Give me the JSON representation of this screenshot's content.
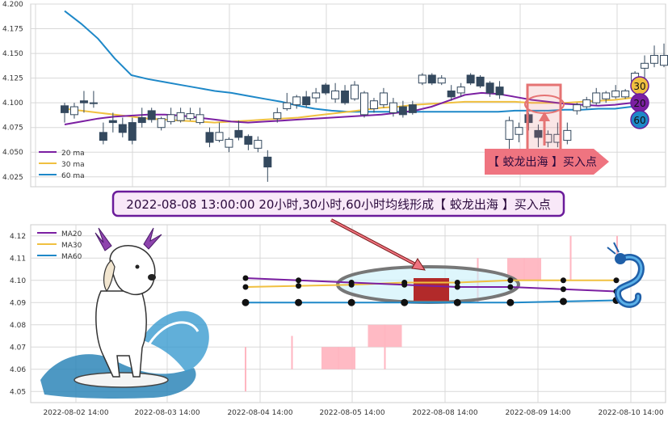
{
  "colors": {
    "ma20": "#7b1fa2",
    "ma30": "#f0c040",
    "ma60": "#1e88c8",
    "up": "#ffffff",
    "down": "#34495e",
    "grid": "#d8d8d8",
    "highlight": "#e57373",
    "banner_bg": "#f8e8f8",
    "banner_border": "#6a1b9a"
  },
  "top_chart": {
    "y_ticks": [
      "4.200",
      "4.175",
      "4.150",
      "4.125",
      "4.100",
      "4.075",
      "4.050",
      "4.025"
    ],
    "legend": [
      {
        "key": "ma20",
        "label": "20 ma"
      },
      {
        "key": "ma30",
        "label": "30 ma"
      },
      {
        "key": "ma60",
        "label": "60 ma"
      }
    ],
    "badges": [
      "30",
      "20",
      "60"
    ],
    "arrow_label": "【 蛟龙出海 】买入点"
  },
  "banner": "2022-08-08 13:00:00 20小时,30小时,60小时均线形成【 蛟龙出海 】买入点",
  "bottom_chart": {
    "y_ticks": [
      "4.12",
      "4.11",
      "4.10",
      "4.09",
      "4.08",
      "4.07",
      "4.06",
      "4.05"
    ],
    "x_ticks": [
      "2022-08-02 14:00",
      "2022-08-03 14:00",
      "2022-08-04 14:00",
      "2022-08-05 14:00",
      "2022-08-08 14:00",
      "2022-08-09 14:00",
      "2022-08-10 14:00"
    ],
    "legend": [
      {
        "key": "ma20",
        "label": "MA20"
      },
      {
        "key": "ma30",
        "label": "MA30"
      },
      {
        "key": "ma60",
        "label": "MA60"
      }
    ]
  },
  "chart_data": [
    {
      "type": "candlestick",
      "ylim": [
        4.015,
        4.2
      ],
      "candles": [
        {
          "o": 4.097,
          "c": 4.09,
          "h": 4.1,
          "l": 4.08
        },
        {
          "o": 4.088,
          "c": 4.096,
          "h": 4.1,
          "l": 4.084
        },
        {
          "o": 4.102,
          "c": 4.1,
          "h": 4.112,
          "l": 4.09
        },
        {
          "o": 4.1,
          "c": 4.1,
          "h": 4.112,
          "l": 4.095
        },
        {
          "o": 4.07,
          "c": 4.062,
          "h": 4.08,
          "l": 4.058
        },
        {
          "o": 4.082,
          "c": 4.08,
          "h": 4.09,
          "l": 4.07
        },
        {
          "o": 4.078,
          "c": 4.07,
          "h": 4.085,
          "l": 4.065
        },
        {
          "o": 4.08,
          "c": 4.062,
          "h": 4.085,
          "l": 4.058
        },
        {
          "o": 4.085,
          "c": 4.08,
          "h": 4.095,
          "l": 4.075
        },
        {
          "o": 4.092,
          "c": 4.083,
          "h": 4.095,
          "l": 4.08
        },
        {
          "o": 4.075,
          "c": 4.084,
          "h": 4.086,
          "l": 4.072
        },
        {
          "o": 4.081,
          "c": 4.088,
          "h": 4.095,
          "l": 4.078
        },
        {
          "o": 4.082,
          "c": 4.09,
          "h": 4.095,
          "l": 4.08
        },
        {
          "o": 4.084,
          "c": 4.089,
          "h": 4.095,
          "l": 4.082
        },
        {
          "o": 4.08,
          "c": 4.088,
          "h": 4.095,
          "l": 4.078
        },
        {
          "o": 4.07,
          "c": 4.06,
          "h": 4.075,
          "l": 4.055
        },
        {
          "o": 4.062,
          "c": 4.07,
          "h": 4.08,
          "l": 4.06
        },
        {
          "o": 4.055,
          "c": 4.063,
          "h": 4.065,
          "l": 4.05
        },
        {
          "o": 4.072,
          "c": 4.065,
          "h": 4.082,
          "l": 4.062
        },
        {
          "o": 4.066,
          "c": 4.058,
          "h": 4.068,
          "l": 4.052
        },
        {
          "o": 4.054,
          "c": 4.062,
          "h": 4.066,
          "l": 4.05
        },
        {
          "o": 4.045,
          "c": 4.035,
          "h": 4.052,
          "l": 4.02
        },
        {
          "o": 4.084,
          "c": 4.09,
          "h": 4.095,
          "l": 4.08
        },
        {
          "o": 4.094,
          "c": 4.1,
          "h": 4.11,
          "l": 4.092
        },
        {
          "o": 4.098,
          "c": 4.106,
          "h": 4.108,
          "l": 4.094
        },
        {
          "o": 4.106,
          "c": 4.098,
          "h": 4.112,
          "l": 4.095
        },
        {
          "o": 4.105,
          "c": 4.11,
          "h": 4.115,
          "l": 4.1
        },
        {
          "o": 4.118,
          "c": 4.11,
          "h": 4.12,
          "l": 4.108
        },
        {
          "o": 4.104,
          "c": 4.112,
          "h": 4.12,
          "l": 4.1
        },
        {
          "o": 4.112,
          "c": 4.1,
          "h": 4.118,
          "l": 4.098
        },
        {
          "o": 4.104,
          "c": 4.118,
          "h": 4.122,
          "l": 4.102
        },
        {
          "o": 4.088,
          "c": 4.11,
          "h": 4.112,
          "l": 4.085
        },
        {
          "o": 4.094,
          "c": 4.102,
          "h": 4.105,
          "l": 4.09
        },
        {
          "o": 4.098,
          "c": 4.11,
          "h": 4.115,
          "l": 4.095
        },
        {
          "o": 4.09,
          "c": 4.1,
          "h": 4.105,
          "l": 4.086
        },
        {
          "o": 4.096,
          "c": 4.088,
          "h": 4.102,
          "l": 4.085
        },
        {
          "o": 4.098,
          "c": 4.09,
          "h": 4.102,
          "l": 4.088
        },
        {
          "o": 4.12,
          "c": 4.128,
          "h": 4.13,
          "l": 4.118
        },
        {
          "o": 4.128,
          "c": 4.12,
          "h": 4.13,
          "l": 4.118
        },
        {
          "o": 4.12,
          "c": 4.125,
          "h": 4.128,
          "l": 4.118
        },
        {
          "o": 4.112,
          "c": 4.106,
          "h": 4.118,
          "l": 4.102
        },
        {
          "o": 4.11,
          "c": 4.116,
          "h": 4.12,
          "l": 4.106
        },
        {
          "o": 4.128,
          "c": 4.12,
          "h": 4.13,
          "l": 4.118
        },
        {
          "o": 4.126,
          "c": 4.117,
          "h": 4.128,
          "l": 4.115
        },
        {
          "o": 4.12,
          "c": 4.11,
          "h": 4.122,
          "l": 4.106
        },
        {
          "o": 4.116,
          "c": 4.108,
          "h": 4.122,
          "l": 4.104
        },
        {
          "o": 4.063,
          "c": 4.082,
          "h": 4.086,
          "l": 4.05
        },
        {
          "o": 4.068,
          "c": 4.075,
          "h": 4.08,
          "l": 4.06
        },
        {
          "o": 4.088,
          "c": 4.08,
          "h": 4.09,
          "l": 4.072
        },
        {
          "o": 4.072,
          "c": 4.065,
          "h": 4.078,
          "l": 4.055
        },
        {
          "o": 4.06,
          "c": 4.068,
          "h": 4.072,
          "l": 4.055
        },
        {
          "o": 4.06,
          "c": 4.068,
          "h": 4.08,
          "l": 4.055
        },
        {
          "o": 4.062,
          "c": 4.072,
          "h": 4.08,
          "l": 4.058
        },
        {
          "o": 4.092,
          "c": 4.098,
          "h": 4.1,
          "l": 4.088
        },
        {
          "o": 4.096,
          "c": 4.103,
          "h": 4.106,
          "l": 4.094
        },
        {
          "o": 4.1,
          "c": 4.11,
          "h": 4.115,
          "l": 4.098
        },
        {
          "o": 4.104,
          "c": 4.11,
          "h": 4.112,
          "l": 4.1
        },
        {
          "o": 4.106,
          "c": 4.112,
          "h": 4.118,
          "l": 4.104
        },
        {
          "o": 4.106,
          "c": 4.112,
          "h": 4.114,
          "l": 4.104
        },
        {
          "o": 4.122,
          "c": 4.13,
          "h": 4.132,
          "l": 4.12
        },
        {
          "o": 4.135,
          "c": 4.14,
          "h": 4.148,
          "l": 4.125
        },
        {
          "o": 4.14,
          "c": 4.148,
          "h": 4.158,
          "l": 4.136
        },
        {
          "o": 4.138,
          "c": 4.148,
          "h": 4.16,
          "l": 4.136
        }
      ],
      "ma20": [
        4.078,
        4.081,
        4.084,
        4.086,
        4.087,
        4.088,
        4.088,
        4.087,
        4.085,
        4.083,
        4.081,
        4.08,
        4.081,
        4.082,
        4.083,
        4.084,
        4.085,
        4.086,
        4.087,
        4.088,
        4.09,
        4.092,
        4.096,
        4.102,
        4.108,
        4.11,
        4.109,
        4.106,
        4.103,
        4.101,
        4.099,
        4.098,
        4.097,
        4.098,
        4.1
      ],
      "ma30": [
        4.094,
        4.092,
        4.09,
        4.088,
        4.086,
        4.084,
        4.083,
        4.082,
        4.081,
        4.08,
        4.081,
        4.082,
        4.083,
        4.084,
        4.085,
        4.087,
        4.089,
        4.091,
        4.093,
        4.095,
        4.096,
        4.098,
        4.099,
        4.1,
        4.101,
        4.101,
        4.101,
        4.101,
        4.1,
        4.1,
        4.1,
        4.101,
        4.102,
        4.103,
        4.105
      ],
      "ma60": [
        4.193,
        4.18,
        4.165,
        4.145,
        4.128,
        4.124,
        4.121,
        4.118,
        4.115,
        4.112,
        4.11,
        4.107,
        4.104,
        4.101,
        4.097,
        4.094,
        4.092,
        4.091,
        4.091,
        4.091,
        4.091,
        4.091,
        4.091,
        4.091,
        4.091,
        4.091,
        4.091,
        4.092,
        4.092,
        4.092,
        4.093,
        4.093,
        4.094,
        4.094,
        4.096
      ]
    },
    {
      "type": "candlestick",
      "ylim": [
        4.045,
        4.125
      ],
      "candles": [
        {
          "o": 4.07,
          "c": 4.07,
          "h": 4.07,
          "l": 4.05
        },
        {
          "o": 4.075,
          "c": 4.075,
          "h": 4.075,
          "l": 4.06
        },
        {
          "o": 4.06,
          "c": 4.07,
          "h": 4.07,
          "l": 4.06
        },
        {
          "o": 4.07,
          "c": 4.08,
          "h": 4.08,
          "l": 4.06
        },
        {
          "o": 4.1,
          "c": 4.09,
          "h": 4.101,
          "l": 4.09
        },
        {
          "o": 4.1,
          "c": 4.1,
          "h": 4.11,
          "l": 4.09
        },
        {
          "o": 4.1,
          "c": 4.11,
          "h": 4.11,
          "l": 4.1
        },
        {
          "o": 4.11,
          "c": 4.11,
          "h": 4.12,
          "l": 4.1
        },
        {
          "o": 4.11,
          "c": 4.11,
          "h": 4.12,
          "l": 4.11
        }
      ],
      "ma20": [
        4.101,
        4.1,
        4.099,
        4.098,
        4.097,
        4.097,
        4.096,
        4.095
      ],
      "ma30": [
        4.097,
        4.0975,
        4.098,
        4.099,
        4.099,
        4.1,
        4.1,
        4.1
      ],
      "ma60": [
        4.09,
        4.09,
        4.09,
        4.09,
        4.09,
        4.09,
        4.0905,
        4.091
      ]
    }
  ]
}
